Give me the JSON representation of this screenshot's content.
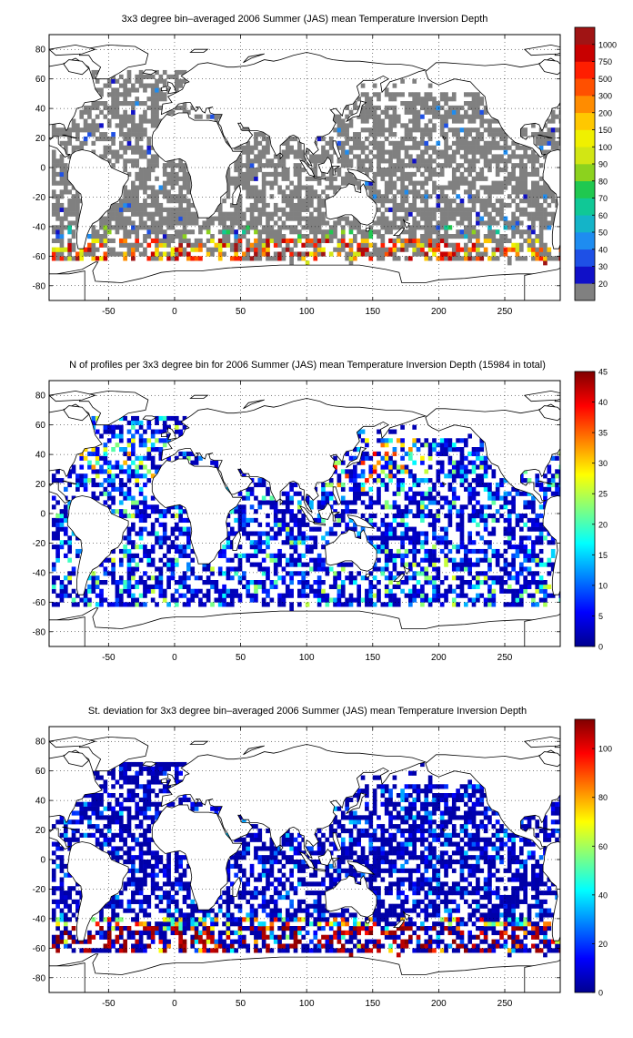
{
  "chart_data": [
    {
      "type": "heatmap",
      "title": "3x3 degree bin–averaged 2006 Summer (JAS) mean Temperature Inversion Depth",
      "xlim": [
        -95,
        292
      ],
      "ylim": [
        -90,
        90
      ],
      "x_ticks": [
        "-50",
        "0",
        "50",
        "100",
        "150",
        "200",
        "250"
      ],
      "y_ticks": [
        "80",
        "60",
        "40",
        "20",
        "0",
        "-20",
        "-40",
        "-60",
        "-80"
      ],
      "grid": true,
      "colorbar": {
        "labels": [
          "20",
          "30",
          "40",
          "50",
          "60",
          "70",
          "80",
          "90",
          "100",
          "150",
          "200",
          "300",
          "500",
          "750",
          "1000"
        ],
        "colors": [
          "#808080",
          "#1010c8",
          "#1e50e6",
          "#1e8cf0",
          "#14b4c8",
          "#10c896",
          "#20c850",
          "#8cd21e",
          "#d2e614",
          "#f0f000",
          "#ffc800",
          "#ff8c00",
          "#ff5000",
          "#ff1e00",
          "#c80000",
          "#a01414"
        ]
      },
      "summary": "Mostly gray bins (<=20 m) over ice-free oceans 60S-70N; warm colours (100-1000 m) in Southern Ocean band 40S-60S"
    },
    {
      "type": "heatmap",
      "title": "N of profiles per 3x3 degree bin for 2006 Summer (JAS) mean Temperature Inversion Depth  (15984 in total)",
      "xlim": [
        -95,
        292
      ],
      "ylim": [
        -90,
        90
      ],
      "x_ticks": [
        "-50",
        "0",
        "50",
        "100",
        "150",
        "200",
        "250"
      ],
      "y_ticks": [
        "80",
        "60",
        "40",
        "20",
        "0",
        "-20",
        "-40",
        "-60",
        "-80"
      ],
      "grid": true,
      "colorbar": {
        "labels": [
          "0",
          "5",
          "10",
          "15",
          "20",
          "25",
          "30",
          "35",
          "40",
          "45"
        ],
        "vmin": 0,
        "vmax": 45
      },
      "summary": "Mostly dark blue (1-10 profiles); higher counts (15-45) in NW Pacific and North Atlantic"
    },
    {
      "type": "heatmap",
      "title": "St. deviation for 3x3 degree bin–averaged 2006 Summer (JAS) mean Temperature Inversion Depth",
      "xlim": [
        -95,
        292
      ],
      "ylim": [
        -90,
        90
      ],
      "x_ticks": [
        "-50",
        "0",
        "50",
        "100",
        "150",
        "200",
        "250"
      ],
      "y_ticks": [
        "80",
        "60",
        "40",
        "20",
        "0",
        "-20",
        "-40",
        "-60",
        "-80"
      ],
      "grid": true,
      "colorbar": {
        "labels": [
          "0",
          "20",
          "40",
          "60",
          "80",
          "100"
        ],
        "vmin": 0,
        "vmax": 112
      },
      "summary": "Mostly dark blue (near 0); dark red (>100) along 45S-60S band"
    }
  ]
}
